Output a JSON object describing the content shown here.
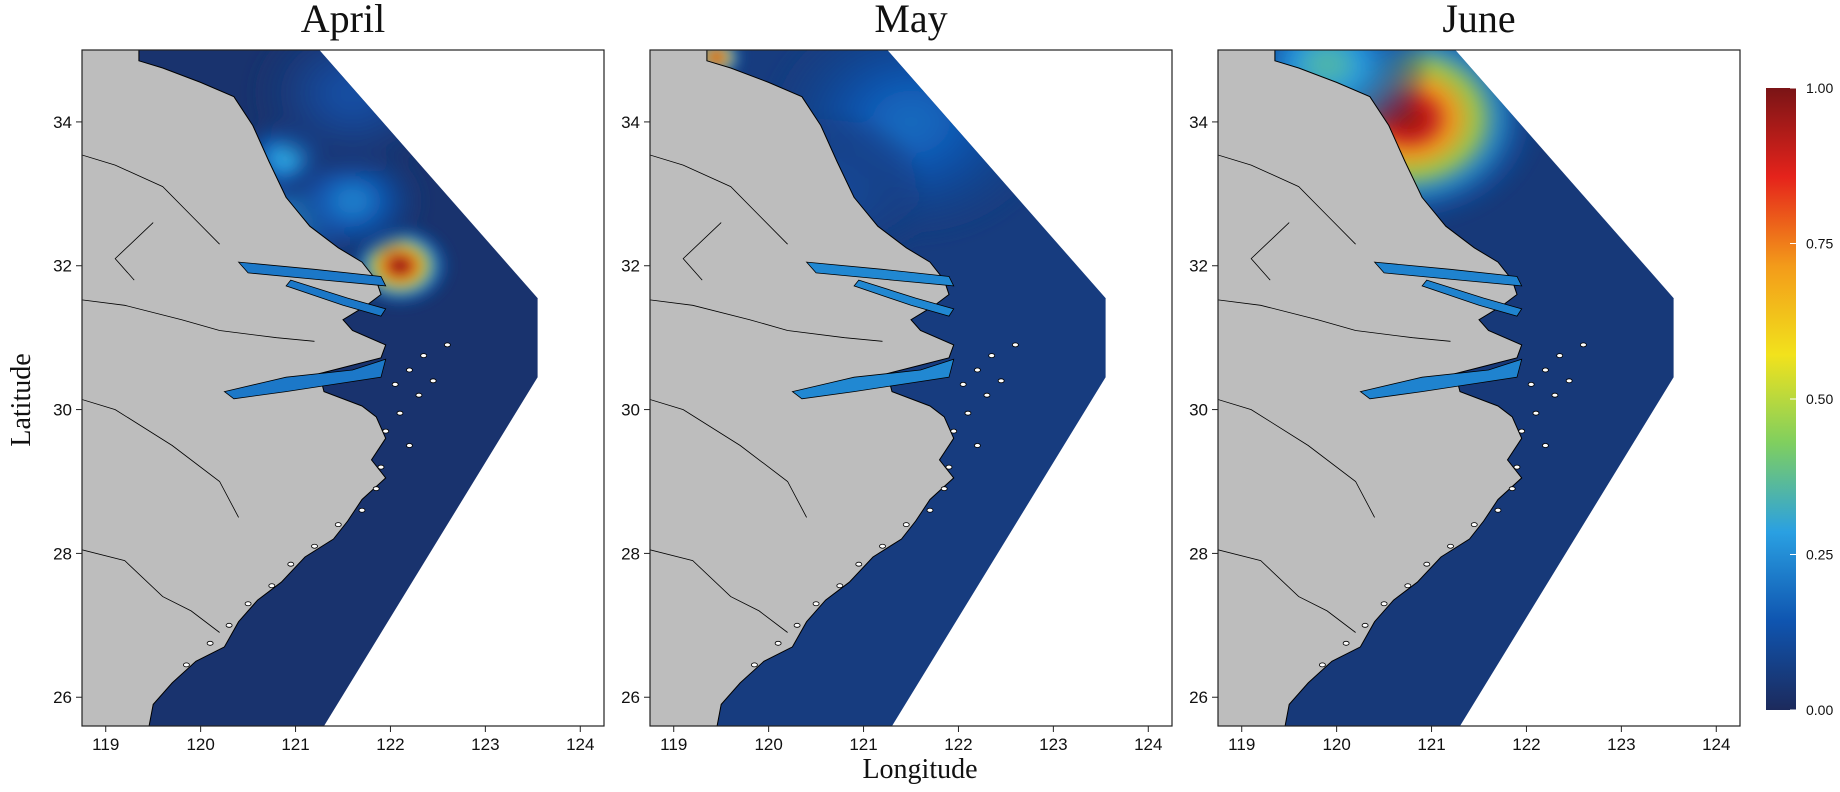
{
  "figure": {
    "xlabel": "Longitude",
    "ylabel": "Latitude"
  },
  "chart_data": {
    "type": "heatmap",
    "x_ticks": [
      "119",
      "120",
      "121",
      "122",
      "123",
      "124"
    ],
    "y_ticks": [
      "26",
      "28",
      "30",
      "32",
      "34"
    ],
    "xlim": [
      118.75,
      124.25
    ],
    "ylim": [
      25.6,
      35.0
    ],
    "colorbar": {
      "ticks": [
        "1.00",
        "0.75",
        "0.50",
        "0.25",
        "0.00"
      ],
      "range": [
        0,
        1
      ],
      "colors": [
        "#1c2a5c",
        "#0f55b0",
        "#2aa0e2",
        "#7fcf5f",
        "#f2e21c",
        "#f39b1a",
        "#e5231b",
        "#7a1416"
      ]
    },
    "colors": {
      "land": "#bdbdbd",
      "outline": "#000000"
    },
    "panels": [
      {
        "title": "April",
        "hotspots": [
          {
            "lon": 122.1,
            "lat": 32.0,
            "value": 1.0,
            "spread": 0.35
          },
          {
            "lon": 121.1,
            "lat": 32.7,
            "value": 0.3,
            "spread": 0.45
          },
          {
            "lon": 120.9,
            "lat": 33.5,
            "value": 0.3,
            "spread": 0.35
          },
          {
            "lon": 121.6,
            "lat": 32.9,
            "value": 0.22,
            "spread": 0.5
          },
          {
            "lon": 121.6,
            "lat": 34.4,
            "value": 0.12,
            "spread": 0.7
          }
        ],
        "background": 0.03
      },
      {
        "title": "May",
        "hotspots": [
          {
            "lon": 119.45,
            "lat": 34.9,
            "value": 0.95,
            "spread": 0.18
          },
          {
            "lon": 121.5,
            "lat": 34.0,
            "value": 0.18,
            "spread": 1.0
          },
          {
            "lon": 120.6,
            "lat": 33.0,
            "value": 0.1,
            "spread": 0.7
          }
        ],
        "background": 0.06
      },
      {
        "title": "June",
        "hotspots": [
          {
            "lon": 120.75,
            "lat": 34.05,
            "value": 0.97,
            "spread": 0.9
          },
          {
            "lon": 119.9,
            "lat": 34.8,
            "value": 0.35,
            "spread": 0.7
          }
        ],
        "background": 0.05
      }
    ]
  }
}
